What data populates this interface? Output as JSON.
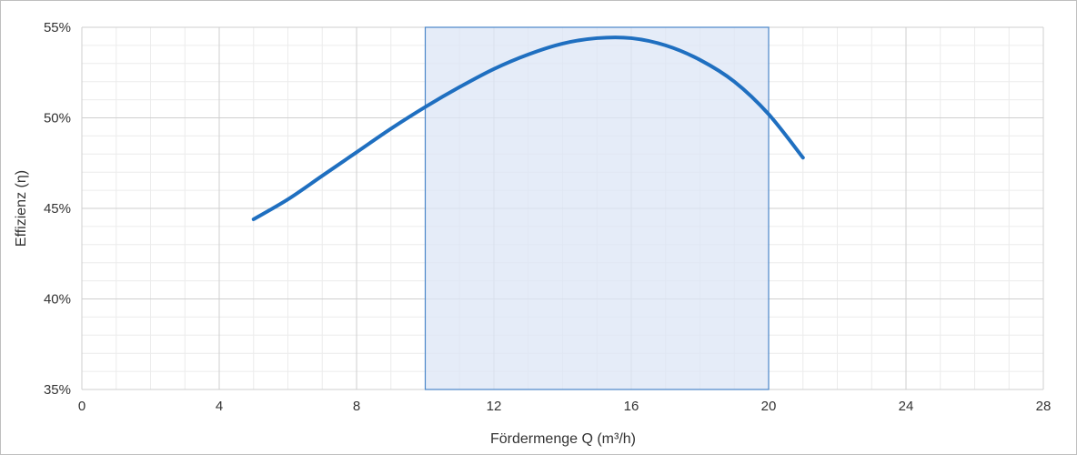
{
  "chart_data": {
    "type": "line",
    "xlabel": "Fördermenge Q (m³/h)",
    "ylabel": "Effizienz (η)",
    "xlim": [
      0,
      28
    ],
    "ylim": [
      35,
      55
    ],
    "x_ticks": [
      0,
      4,
      8,
      12,
      16,
      20,
      24,
      28
    ],
    "x_tick_labels": [
      "0",
      "4",
      "8",
      "12",
      "16",
      "20",
      "24",
      "28"
    ],
    "y_ticks": [
      35,
      40,
      45,
      50,
      55
    ],
    "y_tick_labels": [
      "35%",
      "40%",
      "45%",
      "50%",
      "55%"
    ],
    "minor_x_step": 1,
    "minor_y_step": 1,
    "grid": true,
    "legend": "none",
    "highlight_range": {
      "x_from": 10,
      "x_to": 20,
      "fill_color": "#dce6f5",
      "border_color": "#4a86c8"
    },
    "series": [
      {
        "color": "#1f6fc0",
        "x": [
          5,
          6,
          7,
          8,
          9,
          10,
          11,
          12,
          13,
          14,
          15,
          16,
          17,
          18,
          19,
          20,
          21
        ],
        "y": [
          44.4,
          45.5,
          46.8,
          48.1,
          49.4,
          50.6,
          51.7,
          52.7,
          53.5,
          54.1,
          54.4,
          54.4,
          54.0,
          53.2,
          52.0,
          50.2,
          47.8
        ]
      }
    ]
  }
}
